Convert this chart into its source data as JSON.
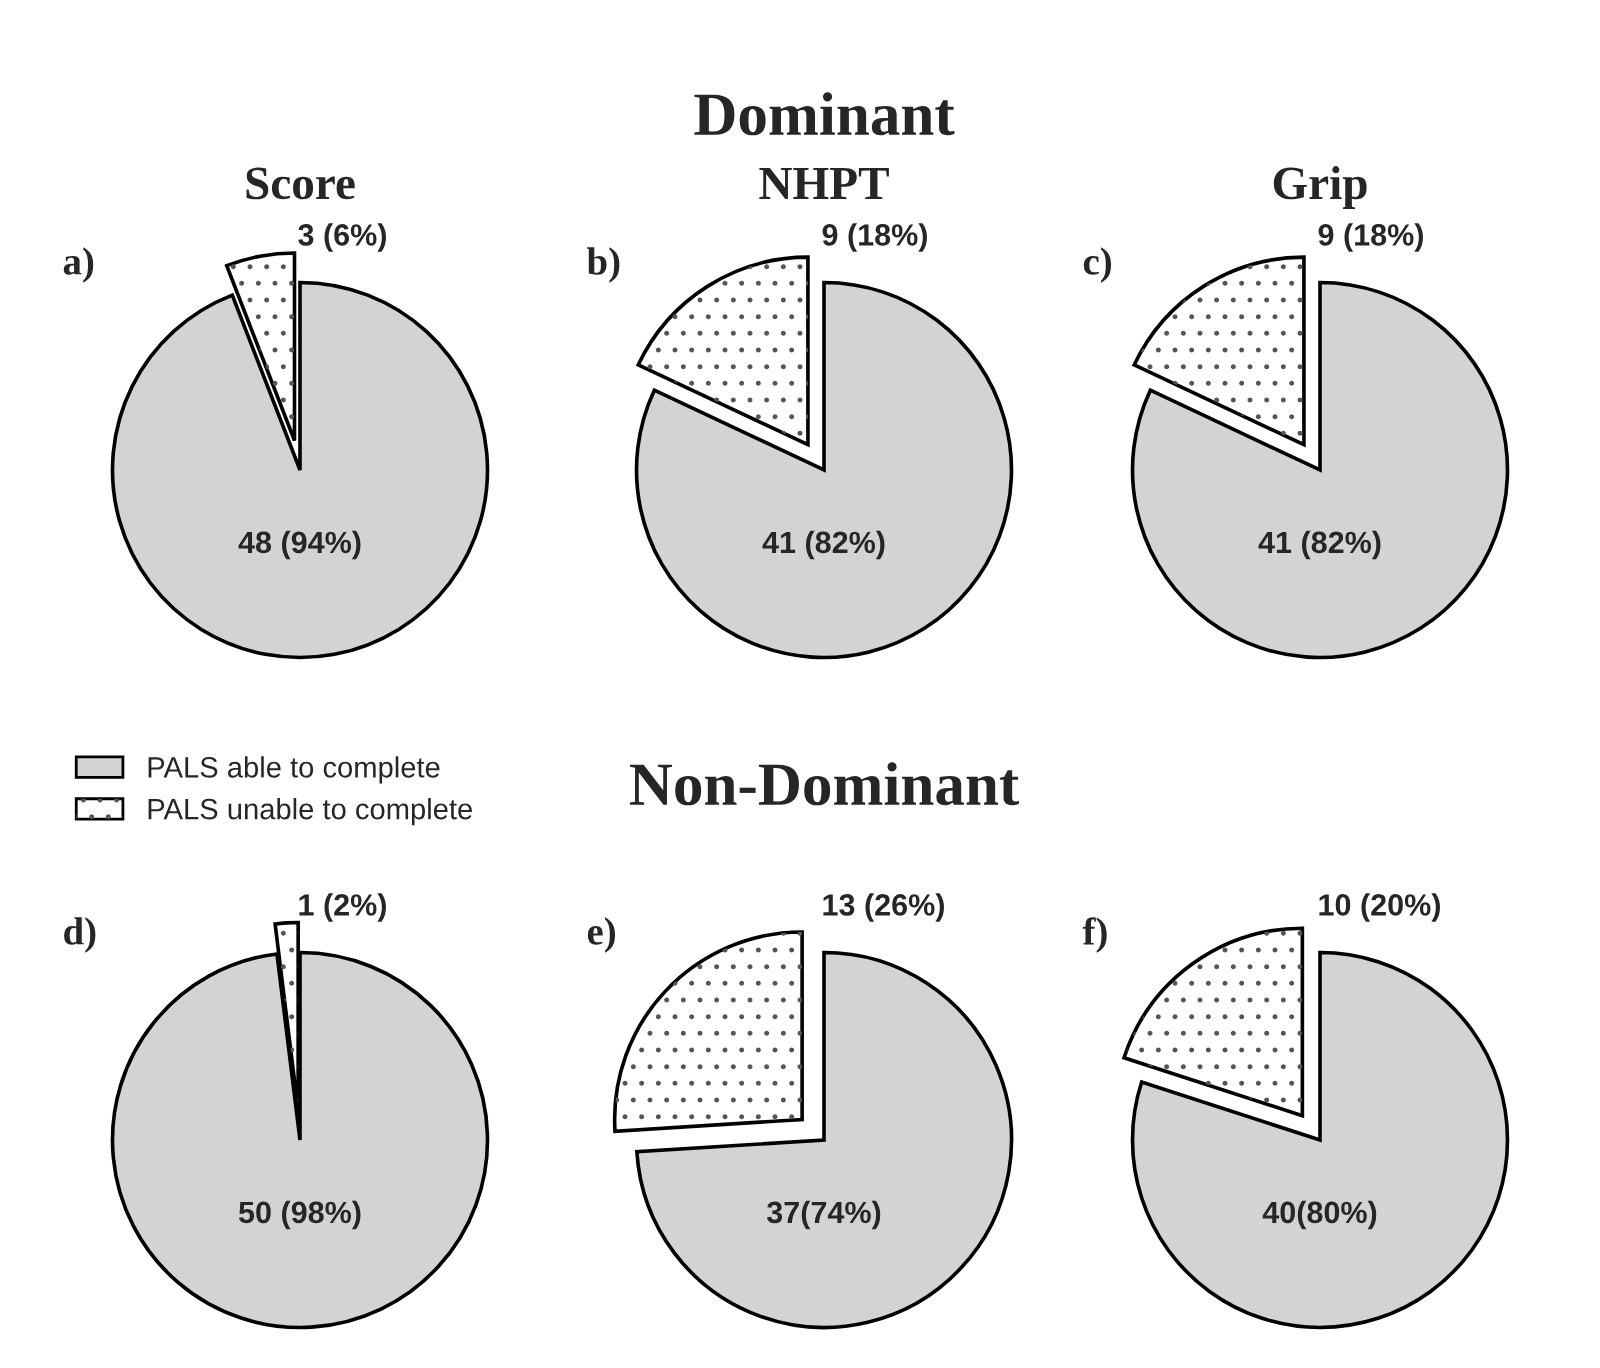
{
  "chart_data": [
    {
      "type": "pie",
      "title": "Score",
      "annotations": [
        "a)"
      ],
      "categories": [
        "PALS able to complete",
        "PALS unable to complete"
      ],
      "values": [
        48,
        3
      ],
      "colors": [
        "#d3d3d3",
        "#ffffff"
      ],
      "value_labels": [
        "48 (94%)",
        "3 (6%)"
      ],
      "legend": "bottom left"
    },
    {
      "type": "pie",
      "subtitle": "Dominant",
      "title": "NHPT",
      "annotations": [
        "b)"
      ],
      "categories": [
        null,
        null
      ],
      "values": [
        41,
        9
      ],
      "colors": [
        "#d3d3d3",
        "#ffffff"
      ],
      "value_labels": [
        "41 (82%)",
        "9 (18%)"
      ]
    },
    {
      "type": "pie",
      "title": "Grip",
      "annotations": [
        "c)"
      ],
      "categories": [
        null,
        null
      ],
      "values": [
        41,
        9
      ],
      "colors": [
        "#d3d3d3",
        "#ffffff"
      ],
      "value_labels": [
        "41 (82%)",
        "9 (18%)"
      ]
    },
    {
      "type": "pie",
      "annotations": [
        "d)"
      ],
      "categories": [
        null,
        null
      ],
      "values": [
        50,
        1
      ],
      "colors": [
        "#d3d3d3",
        "#ffffff"
      ],
      "value_labels": [
        "50 (98%)",
        "1 (2%)"
      ]
    },
    {
      "type": "pie",
      "subtitle": "Non-Dominant",
      "annotations": [
        "e)"
      ],
      "categories": [
        null,
        null
      ],
      "values": [
        37,
        13
      ],
      "colors": [
        "#d3d3d3",
        "#ffffff"
      ],
      "value_labels": [
        "37(74%)",
        "13 (26%)"
      ]
    },
    {
      "type": "pie",
      "annotations": [
        "f)"
      ],
      "categories": [
        null,
        null
      ],
      "values": [
        40,
        10
      ],
      "colors": [
        "#d3d3d3",
        "#ffffff"
      ],
      "value_labels": [
        "40(80%)",
        "10 (20%)"
      ]
    }
  ]
}
